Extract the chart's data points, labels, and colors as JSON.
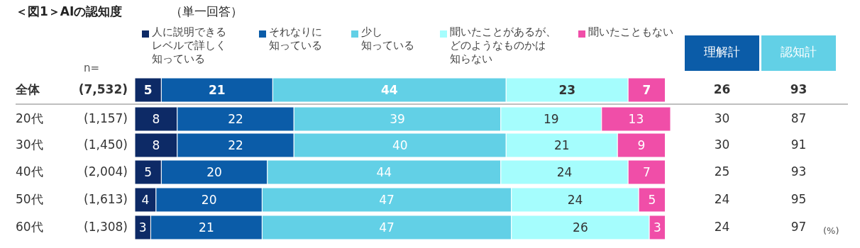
{
  "chart_data": {
    "type": "bar",
    "orientation": "horizontal",
    "stacked": true,
    "data_labels": true,
    "legend": "top",
    "title": "＜図1＞AIの認知度",
    "subtitle": "（単一回答）",
    "categories": [
      "全体",
      "20代",
      "30代",
      "40代",
      "50代",
      "60代"
    ],
    "series": [
      {
        "name": "人に説明できるレベルで詳しく知っている",
        "color": "#0d2a66",
        "values": [
          5,
          8,
          8,
          5,
          4,
          3
        ]
      },
      {
        "name": "それなりに知っている",
        "color": "#0b5ca8",
        "values": [
          21,
          22,
          22,
          20,
          20,
          21
        ]
      },
      {
        "name": "少し知っている",
        "color": "#62d0e6",
        "values": [
          44,
          39,
          40,
          44,
          47,
          47
        ]
      },
      {
        "name": "聞いたことがあるが、どのようなものかは知らない",
        "color": "#a5fdfd",
        "values": [
          23,
          19,
          21,
          24,
          24,
          26
        ]
      },
      {
        "name": "聞いたこともない",
        "color": "#f04ea8",
        "values": [
          7,
          13,
          9,
          7,
          5,
          3
        ]
      }
    ],
    "annotations": [
      "n=",
      "(7,532)",
      "(1,157)",
      "(1,450)",
      "(2,004)",
      "(1,613)",
      "(1,308)",
      "理解計",
      "26",
      "30",
      "30",
      "25",
      "24",
      "24",
      "認知計",
      "93",
      "87",
      "91",
      "93",
      "95",
      "97",
      "(%)"
    ]
  }
}
